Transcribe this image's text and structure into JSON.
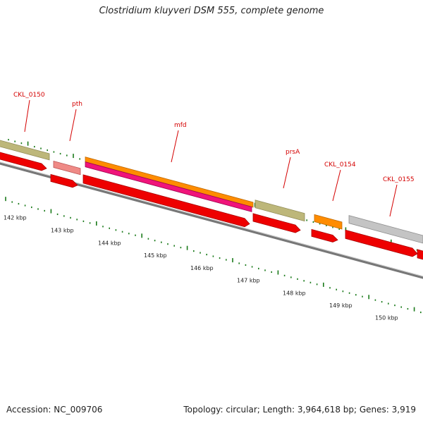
{
  "title": "Clostridium kluyveri DSM 555, complete genome",
  "footer": {
    "accession": "Accession: NC_009706",
    "summary": "Topology: circular; Length: 3,964,618 bp; Genes: 3,919"
  },
  "colors": {
    "gene_label": "#d40000",
    "tick": "#1a7a1a",
    "cds": "#ee0000",
    "cds_shade": "#aa0000",
    "backbone": "#777777",
    "khaki": "#bdb77a",
    "salmon": "#ef8a86",
    "orange": "#ff8c00",
    "magenta": "#f0147a",
    "grey": "#c4c4c4"
  },
  "kbp_labels": [
    "142 kbp",
    "143 kbp",
    "144 kbp",
    "145 kbp",
    "146 kbp",
    "147 kbp",
    "148 kbp",
    "149 kbp",
    "150 kbp"
  ],
  "gene_labels": [
    {
      "name": "cds-label-ckl0150",
      "text": "CKL_0150"
    },
    {
      "name": "cds-label-pth",
      "text": "pth"
    },
    {
      "name": "cds-label-mfd",
      "text": "mfd"
    },
    {
      "name": "cds-label-prsa",
      "text": "prsA"
    },
    {
      "name": "cds-label-ckl0154",
      "text": "CKL_0154"
    },
    {
      "name": "cds-label-ckl0155",
      "text": "CKL_0155"
    }
  ]
}
